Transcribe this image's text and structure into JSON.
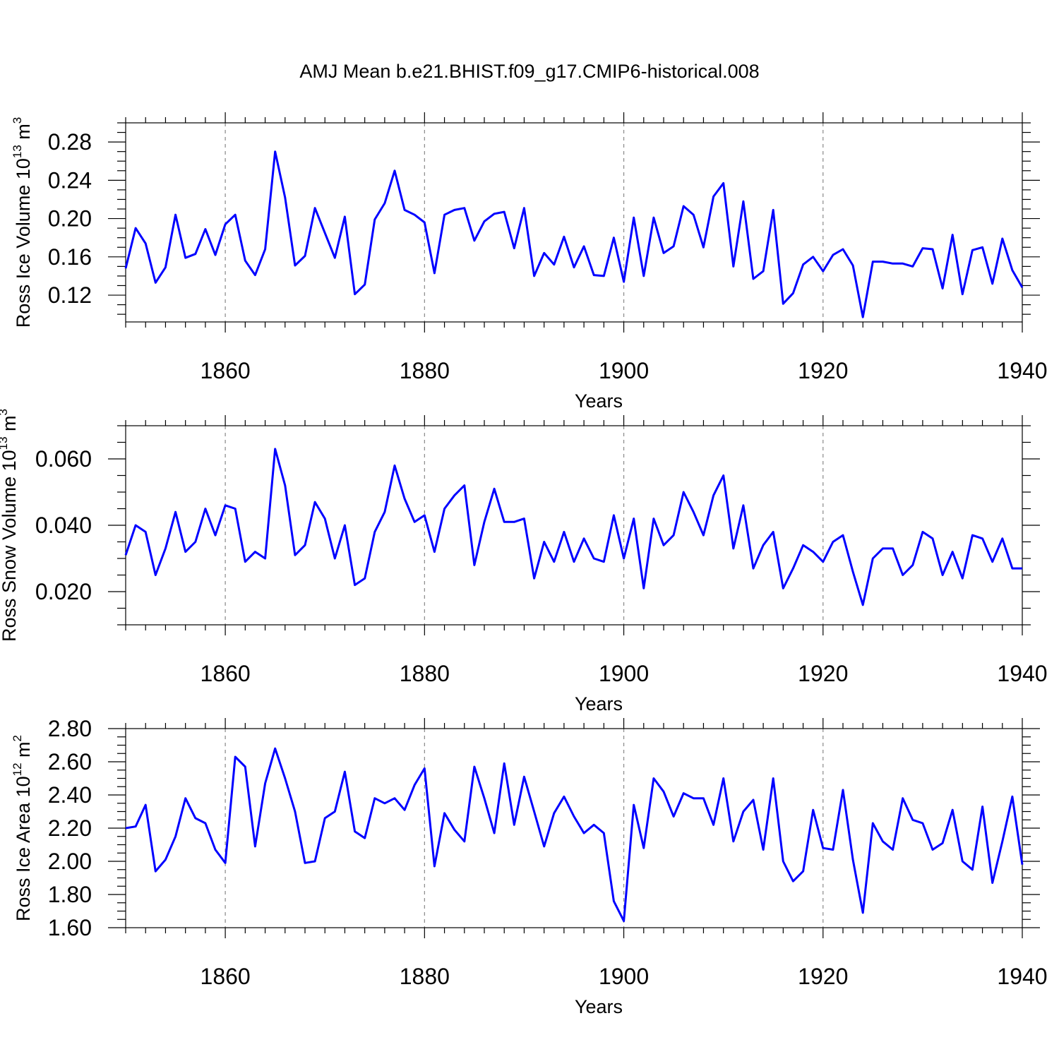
{
  "figure": {
    "title": "AMJ Mean b.e21.BHIST.f09_g17.CMIP6-historical.008"
  },
  "colors": {
    "series": "#0000ff",
    "frame": "#000000",
    "grid": "#888888"
  },
  "chart_data": [
    {
      "type": "line",
      "title": "",
      "xlabel": "Years",
      "ylabel": {
        "base": "Ross Ice Volume 10",
        "exp": "13",
        "unit": " m",
        "unit_exp": "3"
      },
      "xlim": [
        1850,
        1940
      ],
      "ylim": [
        0.092,
        0.3
      ],
      "xticks": [
        1860,
        1880,
        1900,
        1920,
        1940
      ],
      "yticks": [
        0.12,
        0.16,
        0.2,
        0.24,
        0.28
      ],
      "ytick_labels": [
        "0.12",
        "0.16",
        "0.20",
        "0.24",
        "0.28"
      ],
      "yminor_step": 0.01,
      "grid": "x-major dashed",
      "x": [
        1850,
        1851,
        1852,
        1853,
        1854,
        1855,
        1856,
        1857,
        1858,
        1859,
        1860,
        1861,
        1862,
        1863,
        1864,
        1865,
        1866,
        1867,
        1868,
        1869,
        1870,
        1871,
        1872,
        1873,
        1874,
        1875,
        1876,
        1877,
        1878,
        1879,
        1880,
        1881,
        1882,
        1883,
        1884,
        1885,
        1886,
        1887,
        1888,
        1889,
        1890,
        1891,
        1892,
        1893,
        1894,
        1895,
        1896,
        1897,
        1898,
        1899,
        1900,
        1901,
        1902,
        1903,
        1904,
        1905,
        1906,
        1907,
        1908,
        1909,
        1910,
        1911,
        1912,
        1913,
        1914,
        1915,
        1916,
        1917,
        1918,
        1919,
        1920,
        1921,
        1922,
        1923,
        1924,
        1925,
        1926,
        1927,
        1928,
        1929,
        1930,
        1931,
        1932,
        1933,
        1934,
        1935,
        1936,
        1937,
        1938,
        1939,
        1940
      ],
      "series": [
        {
          "values": [
            0.148,
            0.19,
            0.174,
            0.133,
            0.149,
            0.204,
            0.159,
            0.163,
            0.189,
            0.162,
            0.194,
            0.204,
            0.156,
            0.141,
            0.168,
            0.27,
            0.222,
            0.151,
            0.161,
            0.211,
            0.185,
            0.159,
            0.202,
            0.121,
            0.131,
            0.199,
            0.216,
            0.25,
            0.209,
            0.204,
            0.196,
            0.143,
            0.204,
            0.209,
            0.211,
            0.177,
            0.197,
            0.205,
            0.207,
            0.169,
            0.211,
            0.14,
            0.164,
            0.152,
            0.181,
            0.149,
            0.171,
            0.141,
            0.14,
            0.18,
            0.134,
            0.201,
            0.14,
            0.201,
            0.164,
            0.171,
            0.213,
            0.204,
            0.17,
            0.223,
            0.237,
            0.15,
            0.218,
            0.137,
            0.145,
            0.209,
            0.111,
            0.122,
            0.152,
            0.16,
            0.145,
            0.162,
            0.168,
            0.151,
            0.097,
            0.155,
            0.155,
            0.153,
            0.153,
            0.15,
            0.169,
            0.168,
            0.127,
            0.183,
            0.121,
            0.167,
            0.17,
            0.132,
            0.179,
            0.146,
            0.128
          ]
        }
      ]
    },
    {
      "type": "line",
      "title": "",
      "xlabel": "Years",
      "ylabel": {
        "base": "Ross Snow Volume 10",
        "exp": "13",
        "unit": " m",
        "unit_exp": "3"
      },
      "xlim": [
        1850,
        1940
      ],
      "ylim": [
        0.01,
        0.07
      ],
      "xticks": [
        1860,
        1880,
        1900,
        1920,
        1940
      ],
      "yticks": [
        0.02,
        0.04,
        0.06
      ],
      "ytick_labels": [
        "0.020",
        "0.040",
        "0.060"
      ],
      "yminor_step": 0.005,
      "grid": "x-major dashed",
      "x": [
        1850,
        1851,
        1852,
        1853,
        1854,
        1855,
        1856,
        1857,
        1858,
        1859,
        1860,
        1861,
        1862,
        1863,
        1864,
        1865,
        1866,
        1867,
        1868,
        1869,
        1870,
        1871,
        1872,
        1873,
        1874,
        1875,
        1876,
        1877,
        1878,
        1879,
        1880,
        1881,
        1882,
        1883,
        1884,
        1885,
        1886,
        1887,
        1888,
        1889,
        1890,
        1891,
        1892,
        1893,
        1894,
        1895,
        1896,
        1897,
        1898,
        1899,
        1900,
        1901,
        1902,
        1903,
        1904,
        1905,
        1906,
        1907,
        1908,
        1909,
        1910,
        1911,
        1912,
        1913,
        1914,
        1915,
        1916,
        1917,
        1918,
        1919,
        1920,
        1921,
        1922,
        1923,
        1924,
        1925,
        1926,
        1927,
        1928,
        1929,
        1930,
        1931,
        1932,
        1933,
        1934,
        1935,
        1936,
        1937,
        1938,
        1939,
        1940
      ],
      "series": [
        {
          "values": [
            0.031,
            0.04,
            0.038,
            0.025,
            0.033,
            0.044,
            0.032,
            0.035,
            0.045,
            0.037,
            0.046,
            0.045,
            0.029,
            0.032,
            0.03,
            0.063,
            0.052,
            0.031,
            0.034,
            0.047,
            0.042,
            0.03,
            0.04,
            0.022,
            0.024,
            0.038,
            0.044,
            0.058,
            0.048,
            0.041,
            0.043,
            0.032,
            0.045,
            0.049,
            0.052,
            0.028,
            0.041,
            0.051,
            0.041,
            0.041,
            0.042,
            0.024,
            0.035,
            0.029,
            0.038,
            0.029,
            0.036,
            0.03,
            0.029,
            0.043,
            0.03,
            0.042,
            0.021,
            0.042,
            0.034,
            0.037,
            0.05,
            0.044,
            0.037,
            0.049,
            0.055,
            0.033,
            0.046,
            0.027,
            0.034,
            0.038,
            0.021,
            0.027,
            0.034,
            0.032,
            0.029,
            0.035,
            0.037,
            0.026,
            0.016,
            0.03,
            0.033,
            0.033,
            0.025,
            0.028,
            0.038,
            0.036,
            0.025,
            0.032,
            0.024,
            0.037,
            0.036,
            0.029,
            0.036,
            0.027,
            0.027
          ]
        }
      ]
    },
    {
      "type": "line",
      "title": "",
      "xlabel": "Years",
      "ylabel": {
        "base": "Ross Ice Area 10",
        "exp": "12",
        "unit": " m",
        "unit_exp": "2"
      },
      "xlim": [
        1850,
        1940
      ],
      "ylim": [
        1.6,
        2.8
      ],
      "xticks": [
        1860,
        1880,
        1900,
        1920,
        1940
      ],
      "yticks": [
        1.6,
        1.8,
        2.0,
        2.2,
        2.4,
        2.6,
        2.8
      ],
      "ytick_labels": [
        "1.60",
        "1.80",
        "2.00",
        "2.20",
        "2.40",
        "2.60",
        "2.80"
      ],
      "yminor_step": 0.05,
      "grid": "x-major dashed",
      "x": [
        1850,
        1851,
        1852,
        1853,
        1854,
        1855,
        1856,
        1857,
        1858,
        1859,
        1860,
        1861,
        1862,
        1863,
        1864,
        1865,
        1866,
        1867,
        1868,
        1869,
        1870,
        1871,
        1872,
        1873,
        1874,
        1875,
        1876,
        1877,
        1878,
        1879,
        1880,
        1881,
        1882,
        1883,
        1884,
        1885,
        1886,
        1887,
        1888,
        1889,
        1890,
        1891,
        1892,
        1893,
        1894,
        1895,
        1896,
        1897,
        1898,
        1899,
        1900,
        1901,
        1902,
        1903,
        1904,
        1905,
        1906,
        1907,
        1908,
        1909,
        1910,
        1911,
        1912,
        1913,
        1914,
        1915,
        1916,
        1917,
        1918,
        1919,
        1920,
        1921,
        1922,
        1923,
        1924,
        1925,
        1926,
        1927,
        1928,
        1929,
        1930,
        1931,
        1932,
        1933,
        1934,
        1935,
        1936,
        1937,
        1938,
        1939,
        1940
      ],
      "series": [
        {
          "values": [
            2.2,
            2.21,
            2.34,
            1.94,
            2.01,
            2.15,
            2.38,
            2.26,
            2.23,
            2.07,
            1.99,
            2.63,
            2.57,
            2.09,
            2.47,
            2.68,
            2.5,
            2.3,
            1.99,
            2.0,
            2.26,
            2.3,
            2.54,
            2.18,
            2.14,
            2.38,
            2.35,
            2.38,
            2.31,
            2.46,
            2.56,
            1.97,
            2.29,
            2.19,
            2.12,
            2.57,
            2.38,
            2.17,
            2.59,
            2.22,
            2.51,
            2.3,
            2.09,
            2.29,
            2.39,
            2.27,
            2.17,
            2.22,
            2.17,
            1.76,
            1.64,
            2.34,
            2.08,
            2.5,
            2.42,
            2.27,
            2.41,
            2.38,
            2.38,
            2.22,
            2.5,
            2.12,
            2.3,
            2.37,
            2.07,
            2.5,
            2.0,
            1.88,
            1.94,
            2.31,
            2.08,
            2.07,
            2.43,
            2.01,
            1.69,
            2.23,
            2.12,
            2.07,
            2.38,
            2.25,
            2.23,
            2.07,
            2.11,
            2.31,
            2.0,
            1.95,
            2.33,
            1.87,
            2.12,
            2.39,
            1.98
          ]
        }
      ]
    }
  ]
}
